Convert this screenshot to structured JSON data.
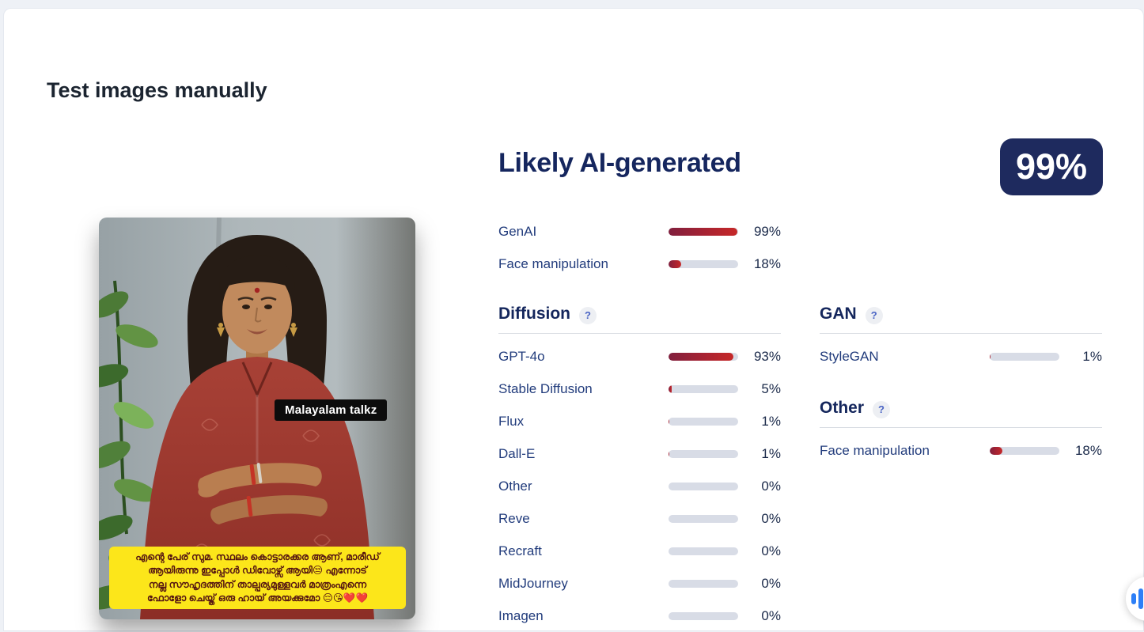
{
  "page": {
    "title": "Test images manually"
  },
  "result": {
    "verdict": "Likely AI-generated",
    "confidence": "99%"
  },
  "summary": {
    "rows": [
      {
        "label": "GenAI",
        "value": 99,
        "pct": "99%"
      },
      {
        "label": "Face manipulation",
        "value": 18,
        "pct": "18%"
      }
    ]
  },
  "sections": {
    "diffusion": {
      "title": "Diffusion",
      "help": "?",
      "rows": [
        {
          "label": "GPT-4o",
          "value": 93,
          "pct": "93%"
        },
        {
          "label": "Stable Diffusion",
          "value": 5,
          "pct": "5%"
        },
        {
          "label": "Flux",
          "value": 1,
          "pct": "1%"
        },
        {
          "label": "Dall-E",
          "value": 1,
          "pct": "1%"
        },
        {
          "label": "Other",
          "value": 0,
          "pct": "0%"
        },
        {
          "label": "Reve",
          "value": 0,
          "pct": "0%"
        },
        {
          "label": "Recraft",
          "value": 0,
          "pct": "0%"
        },
        {
          "label": "MidJourney",
          "value": 0,
          "pct": "0%"
        },
        {
          "label": "Imagen",
          "value": 0,
          "pct": "0%"
        }
      ]
    },
    "gan": {
      "title": "GAN",
      "help": "?",
      "rows": [
        {
          "label": "StyleGAN",
          "value": 1,
          "pct": "1%"
        }
      ]
    },
    "other": {
      "title": "Other",
      "help": "?",
      "rows": [
        {
          "label": "Face manipulation",
          "value": 18,
          "pct": "18%"
        }
      ]
    }
  },
  "image": {
    "overlay_label": "Malayalam talkz",
    "caption_lines": [
      "എന്റെ പേര് സുമ. സ്ഥലം കൊട്ടാരക്കര ആണ്, മാരീഡ്",
      "ആയിരുന്നു ഇപ്പോൾ ഡിവോഴ്സ് ആയി😒 എന്നോട്",
      "നല്ല സൗഹൃദത്തിന് താല്പര്യമുള്ളവർ മാത്രംഎന്നെ",
      "ഫോളോ ചെയ്ത് ഒരു ഹായ് അയക്കുമോ 😔😘❤️❤️"
    ]
  },
  "icons": {
    "help_icon": "question-mark-icon",
    "floating_button_icon": "audio-bars-icon"
  },
  "colors": {
    "badge_bg": "#1e2a5e",
    "heading_navy": "#15265e",
    "label_blue": "#223c7c",
    "bar_red_dark": "#801f3d",
    "bar_red": "#c62828",
    "bar_track": "#d8dce6",
    "caption_bg": "#fce61a",
    "caption_text": "#551512",
    "widget_blue": "#2d7ff7"
  }
}
